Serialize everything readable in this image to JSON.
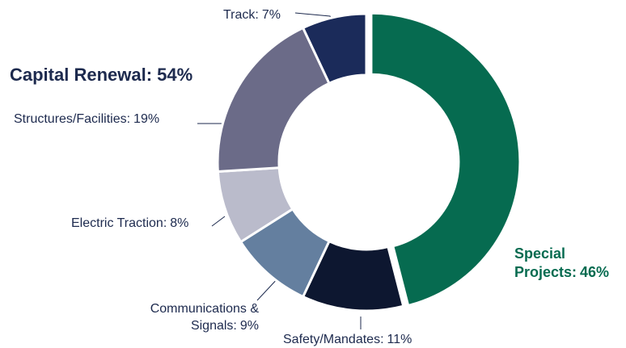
{
  "chart_data": {
    "type": "pie",
    "categories": [
      "Special Projects:",
      "Safety/Mandates:",
      "Communications & Signals:",
      "Electric Traction:",
      "Structures/Facilities:",
      "Track:"
    ],
    "values": [
      46,
      11,
      9,
      8,
      19,
      7
    ],
    "value_labels": [
      "46%",
      "11%",
      "9%",
      "8%",
      "19%",
      "7%"
    ],
    "colors": [
      "#066b50",
      "#0d1730",
      "#647f9f",
      "#babbcb",
      "#6b6b88",
      "#1b2b5a"
    ],
    "annotations": [
      "Capital Renewal: 54%"
    ],
    "donut": true
  }
}
